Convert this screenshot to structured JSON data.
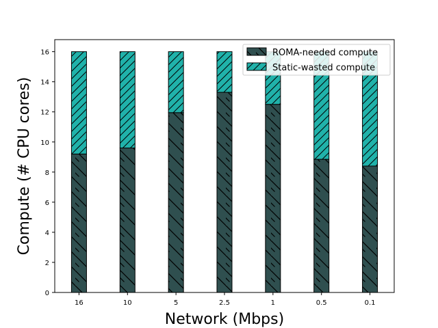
{
  "chart_data": {
    "type": "bar",
    "stacked": true,
    "categories": [
      "16",
      "10",
      "5",
      "2.5",
      "1",
      "0.5",
      "0.1"
    ],
    "series": [
      {
        "name": "ROMA-needed compute",
        "values": [
          9.2,
          9.6,
          11.95,
          13.3,
          12.5,
          8.85,
          8.4
        ],
        "color": "#2f4f4f",
        "hatch": "\\"
      },
      {
        "name": "Static-wasted compute",
        "values": [
          6.8,
          6.4,
          4.05,
          2.7,
          3.5,
          7.15,
          7.6
        ],
        "color": "#20b2aa",
        "hatch": "/"
      }
    ],
    "xlabel": "Network (Mbps)",
    "ylabel": "Compute (# CPU cores)",
    "ylim": [
      0,
      16.8
    ],
    "yticks": [
      0,
      2,
      4,
      6,
      8,
      10,
      12,
      14,
      16
    ],
    "grid": false,
    "legend_position": "top-right"
  }
}
